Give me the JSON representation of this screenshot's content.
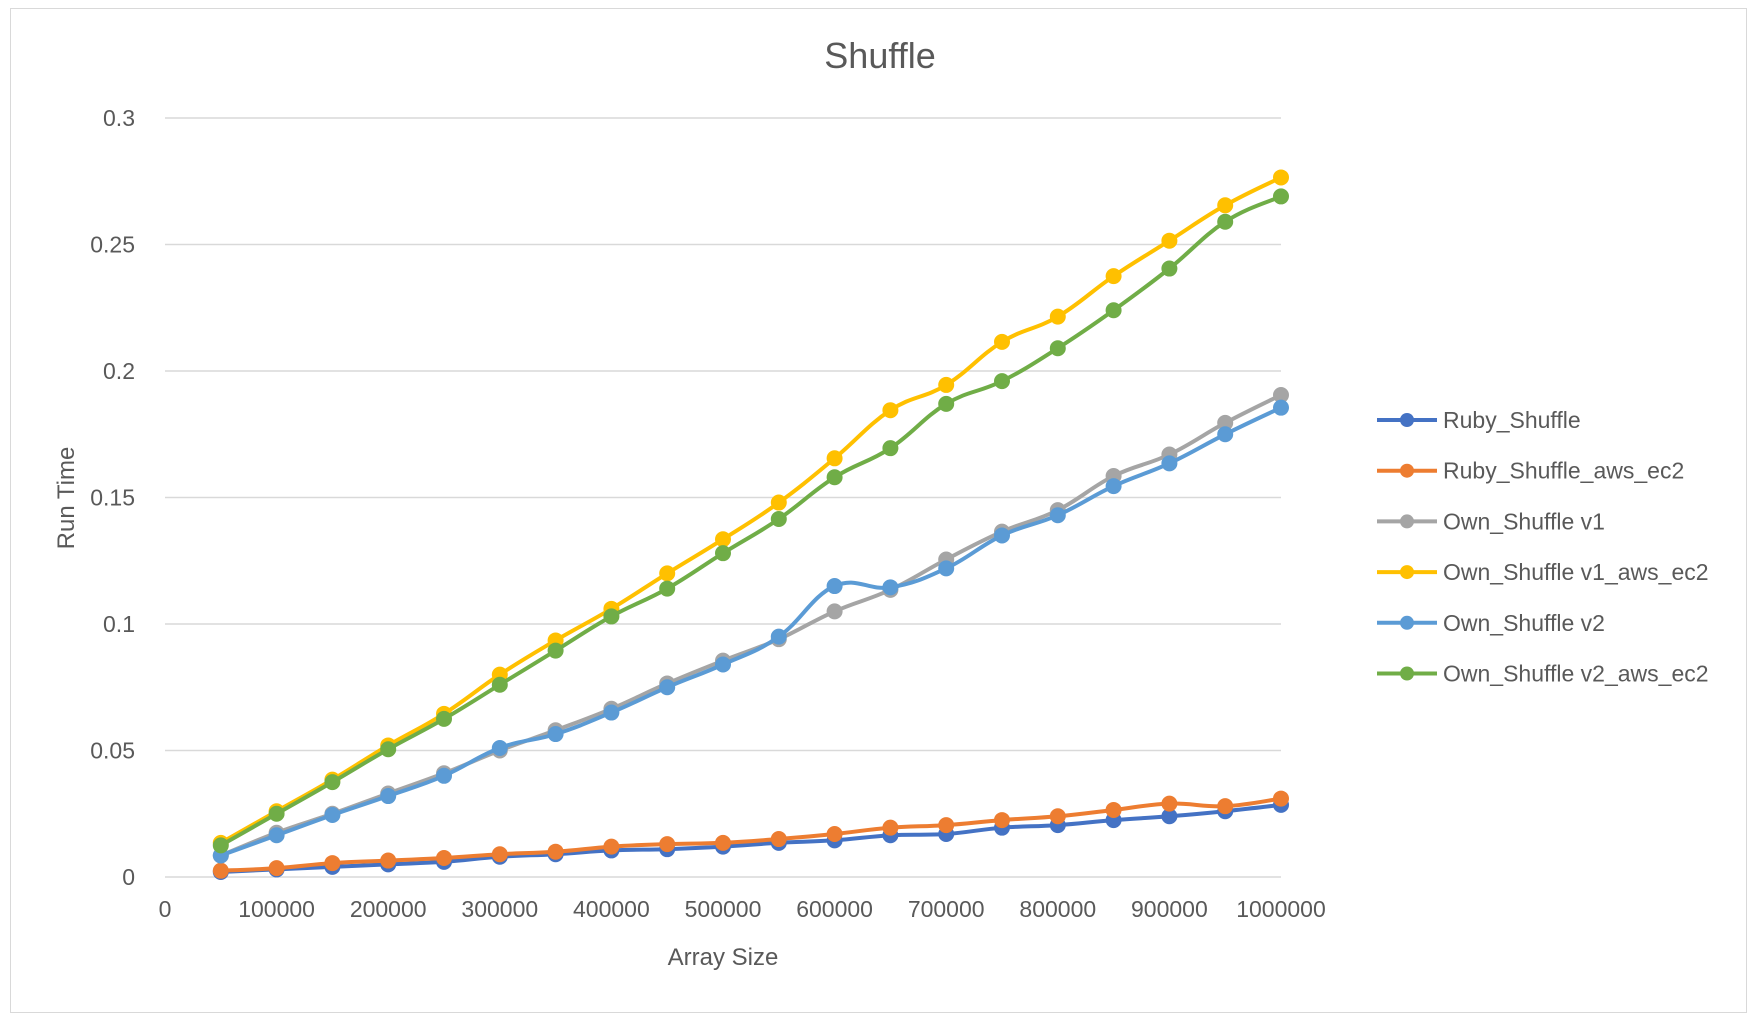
{
  "chart_data": {
    "type": "line",
    "title": "Shuffle",
    "xlabel": "Array Size",
    "ylabel": "Run Time",
    "xlim": [
      0,
      1000000
    ],
    "ylim": [
      0,
      0.3
    ],
    "x_ticks": [
      "0",
      "100000",
      "200000",
      "300000",
      "400000",
      "500000",
      "600000",
      "700000",
      "800000",
      "900000",
      "1000000"
    ],
    "y_ticks": [
      "0",
      "0.05",
      "0.1",
      "0.15",
      "0.2",
      "0.25",
      "0.3"
    ],
    "grid": "horizontal",
    "legend_position": "right",
    "x": [
      50000,
      100000,
      150000,
      200000,
      250000,
      300000,
      350000,
      400000,
      450000,
      500000,
      550000,
      600000,
      650000,
      700000,
      750000,
      800000,
      850000,
      900000,
      950000,
      1000000
    ],
    "series": [
      {
        "name": "Ruby_Shuffle",
        "color": "#4472C4",
        "values": [
          0.002,
          0.003,
          0.004,
          0.005,
          0.006,
          0.008,
          0.009,
          0.0105,
          0.011,
          0.012,
          0.0135,
          0.0145,
          0.0165,
          0.017,
          0.0195,
          0.0205,
          0.0225,
          0.024,
          0.026,
          0.0285
        ]
      },
      {
        "name": "Ruby_Shuffle_aws_ec2",
        "color": "#ED7D31",
        "values": [
          0.0025,
          0.0035,
          0.0055,
          0.0065,
          0.0075,
          0.009,
          0.01,
          0.012,
          0.013,
          0.0135,
          0.015,
          0.017,
          0.0195,
          0.0205,
          0.0225,
          0.024,
          0.0265,
          0.029,
          0.028,
          0.031
        ]
      },
      {
        "name": "Own_Shuffle v1",
        "color": "#A5A5A5",
        "values": [
          0.0085,
          0.0175,
          0.025,
          0.033,
          0.041,
          0.05,
          0.058,
          0.0665,
          0.0765,
          0.0855,
          0.094,
          0.105,
          0.1135,
          0.1255,
          0.1365,
          0.145,
          0.1585,
          0.167,
          0.1795,
          0.1905
        ]
      },
      {
        "name": "Own_Shuffle v1_aws_ec2",
        "color": "#FFC000",
        "values": [
          0.0135,
          0.026,
          0.0385,
          0.052,
          0.0645,
          0.08,
          0.0935,
          0.106,
          0.12,
          0.1335,
          0.148,
          0.1655,
          0.1845,
          0.1945,
          0.2115,
          0.2215,
          0.2375,
          0.2515,
          0.2655,
          0.2765
        ]
      },
      {
        "name": "Own_Shuffle v2",
        "color": "#5B9BD5",
        "values": [
          0.0085,
          0.0165,
          0.0245,
          0.032,
          0.04,
          0.051,
          0.0565,
          0.065,
          0.075,
          0.084,
          0.095,
          0.115,
          0.1145,
          0.122,
          0.135,
          0.143,
          0.1545,
          0.1635,
          0.175,
          0.1855
        ]
      },
      {
        "name": "Own_Shuffle v2_aws_ec2",
        "color": "#70AD47",
        "values": [
          0.0125,
          0.025,
          0.0375,
          0.0505,
          0.0625,
          0.076,
          0.0895,
          0.103,
          0.114,
          0.128,
          0.1415,
          0.158,
          0.1695,
          0.187,
          0.196,
          0.209,
          0.224,
          0.2405,
          0.259,
          0.269
        ]
      }
    ]
  }
}
